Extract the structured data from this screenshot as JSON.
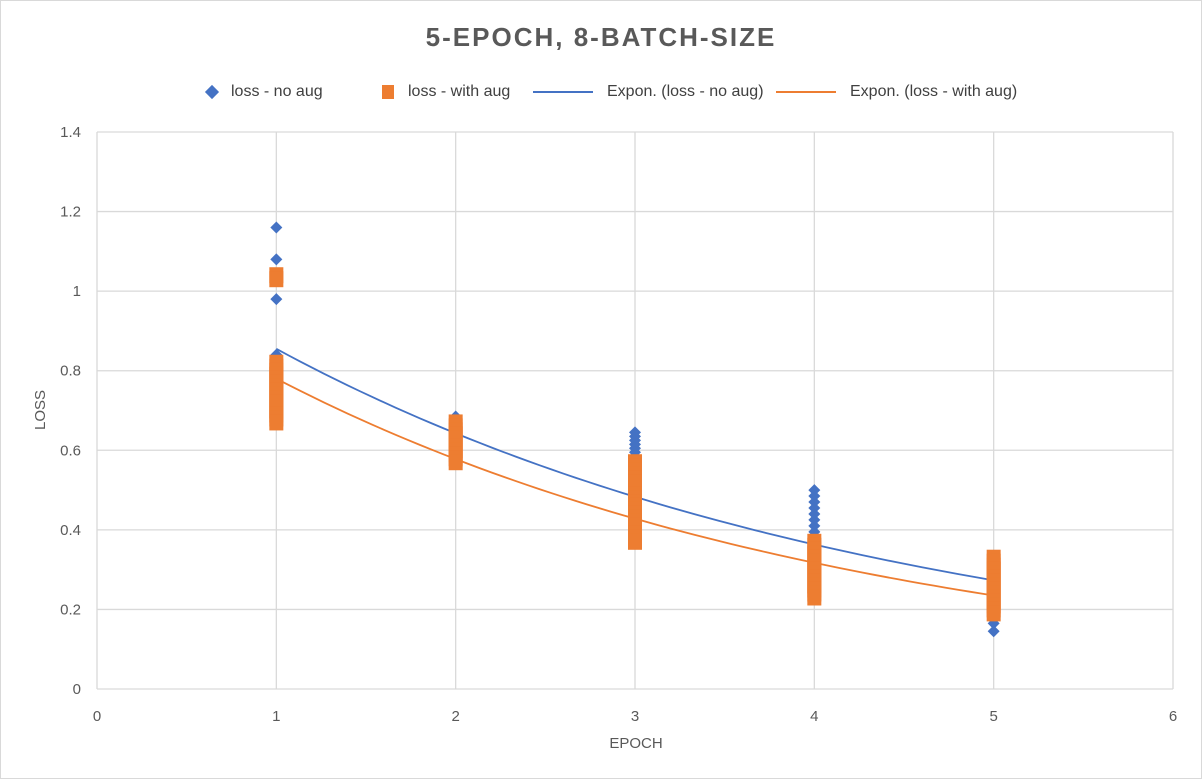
{
  "chart_data": {
    "type": "scatter",
    "title": "5-EPOCH,  8-BATCH-SIZE",
    "xlabel": "EPOCH",
    "ylabel": "LOSS",
    "xlim": [
      0,
      6
    ],
    "ylim": [
      0,
      1.4
    ],
    "x_ticks": [
      "0",
      "1",
      "2",
      "3",
      "4",
      "5",
      "6"
    ],
    "y_ticks": [
      "0",
      "0.2",
      "0.4",
      "0.6",
      "0.8",
      "1",
      "1.2",
      "1.4"
    ],
    "grid": true,
    "legend_position": "top",
    "series": [
      {
        "name": "loss - no aug",
        "kind": "scatter",
        "marker": "diamond",
        "color": "#4472c4",
        "points": [
          [
            1,
            1.16
          ],
          [
            1,
            1.08
          ],
          [
            1,
            0.98
          ],
          [
            1,
            0.84
          ],
          [
            1,
            0.8
          ],
          [
            1,
            0.76
          ],
          [
            1,
            0.72
          ],
          [
            1,
            0.69
          ],
          [
            2,
            0.685
          ],
          [
            2,
            0.66
          ],
          [
            2,
            0.64
          ],
          [
            2,
            0.62
          ],
          [
            3,
            0.645
          ],
          [
            3,
            0.635
          ],
          [
            3,
            0.625
          ],
          [
            3,
            0.615
          ],
          [
            3,
            0.605
          ],
          [
            3,
            0.595
          ],
          [
            3,
            0.585
          ],
          [
            3,
            0.575
          ],
          [
            3,
            0.56
          ],
          [
            3,
            0.54
          ],
          [
            3,
            0.52
          ],
          [
            3,
            0.5
          ],
          [
            3,
            0.48
          ],
          [
            3,
            0.46
          ],
          [
            3,
            0.44
          ],
          [
            4,
            0.5
          ],
          [
            4,
            0.485
          ],
          [
            4,
            0.47
          ],
          [
            4,
            0.455
          ],
          [
            4,
            0.44
          ],
          [
            4,
            0.425
          ],
          [
            4,
            0.41
          ],
          [
            4,
            0.395
          ],
          [
            4,
            0.38
          ],
          [
            4,
            0.36
          ],
          [
            4,
            0.34
          ],
          [
            4,
            0.32
          ],
          [
            4,
            0.3
          ],
          [
            4,
            0.28
          ],
          [
            4,
            0.26
          ],
          [
            5,
            0.145
          ],
          [
            5,
            0.165
          ],
          [
            5,
            0.19
          ],
          [
            5,
            0.21
          ],
          [
            5,
            0.23
          ],
          [
            5,
            0.25
          ],
          [
            5,
            0.27
          ]
        ]
      },
      {
        "name": "loss - with aug",
        "kind": "scatter",
        "marker": "square",
        "color": "#ed7d31",
        "points": [
          [
            1,
            1.04
          ],
          [
            1,
            1.03
          ],
          [
            1,
            0.82
          ],
          [
            1,
            0.81
          ],
          [
            1,
            0.8
          ],
          [
            1,
            0.79
          ],
          [
            1,
            0.78
          ],
          [
            1,
            0.77
          ],
          [
            1,
            0.76
          ],
          [
            1,
            0.75
          ],
          [
            1,
            0.74
          ],
          [
            1,
            0.73
          ],
          [
            1,
            0.72
          ],
          [
            1,
            0.71
          ],
          [
            1,
            0.7
          ],
          [
            1,
            0.69
          ],
          [
            1,
            0.68
          ],
          [
            1,
            0.67
          ],
          [
            2,
            0.67
          ],
          [
            2,
            0.66
          ],
          [
            2,
            0.65
          ],
          [
            2,
            0.64
          ],
          [
            2,
            0.63
          ],
          [
            2,
            0.62
          ],
          [
            2,
            0.61
          ],
          [
            2,
            0.6
          ],
          [
            2,
            0.59
          ],
          [
            2,
            0.58
          ],
          [
            2,
            0.57
          ],
          [
            3,
            0.57
          ],
          [
            3,
            0.56
          ],
          [
            3,
            0.55
          ],
          [
            3,
            0.54
          ],
          [
            3,
            0.53
          ],
          [
            3,
            0.52
          ],
          [
            3,
            0.51
          ],
          [
            3,
            0.5
          ],
          [
            3,
            0.49
          ],
          [
            3,
            0.48
          ],
          [
            3,
            0.47
          ],
          [
            3,
            0.46
          ],
          [
            3,
            0.45
          ],
          [
            3,
            0.44
          ],
          [
            3,
            0.43
          ],
          [
            3,
            0.42
          ],
          [
            3,
            0.41
          ],
          [
            3,
            0.4
          ],
          [
            3,
            0.39
          ],
          [
            3,
            0.38
          ],
          [
            3,
            0.37
          ],
          [
            4,
            0.37
          ],
          [
            4,
            0.36
          ],
          [
            4,
            0.35
          ],
          [
            4,
            0.34
          ],
          [
            4,
            0.33
          ],
          [
            4,
            0.32
          ],
          [
            4,
            0.31
          ],
          [
            4,
            0.3
          ],
          [
            4,
            0.29
          ],
          [
            4,
            0.28
          ],
          [
            4,
            0.27
          ],
          [
            4,
            0.26
          ],
          [
            4,
            0.25
          ],
          [
            4,
            0.24
          ],
          [
            4,
            0.23
          ],
          [
            5,
            0.33
          ],
          [
            5,
            0.32
          ],
          [
            5,
            0.31
          ],
          [
            5,
            0.3
          ],
          [
            5,
            0.29
          ],
          [
            5,
            0.28
          ],
          [
            5,
            0.27
          ],
          [
            5,
            0.26
          ],
          [
            5,
            0.25
          ],
          [
            5,
            0.24
          ],
          [
            5,
            0.23
          ],
          [
            5,
            0.22
          ],
          [
            5,
            0.21
          ],
          [
            5,
            0.2
          ],
          [
            5,
            0.19
          ]
        ]
      },
      {
        "name": "Expon. (loss - no aug)",
        "kind": "trendline",
        "model": "exponential",
        "color": "#4472c4",
        "x_range": [
          1,
          5
        ],
        "start_y": 0.855,
        "end_y": 0.273
      },
      {
        "name": "Expon. (loss - with aug)",
        "kind": "trendline",
        "model": "exponential",
        "color": "#ed7d31",
        "x_range": [
          1,
          5
        ],
        "start_y": 0.78,
        "end_y": 0.235
      }
    ]
  }
}
